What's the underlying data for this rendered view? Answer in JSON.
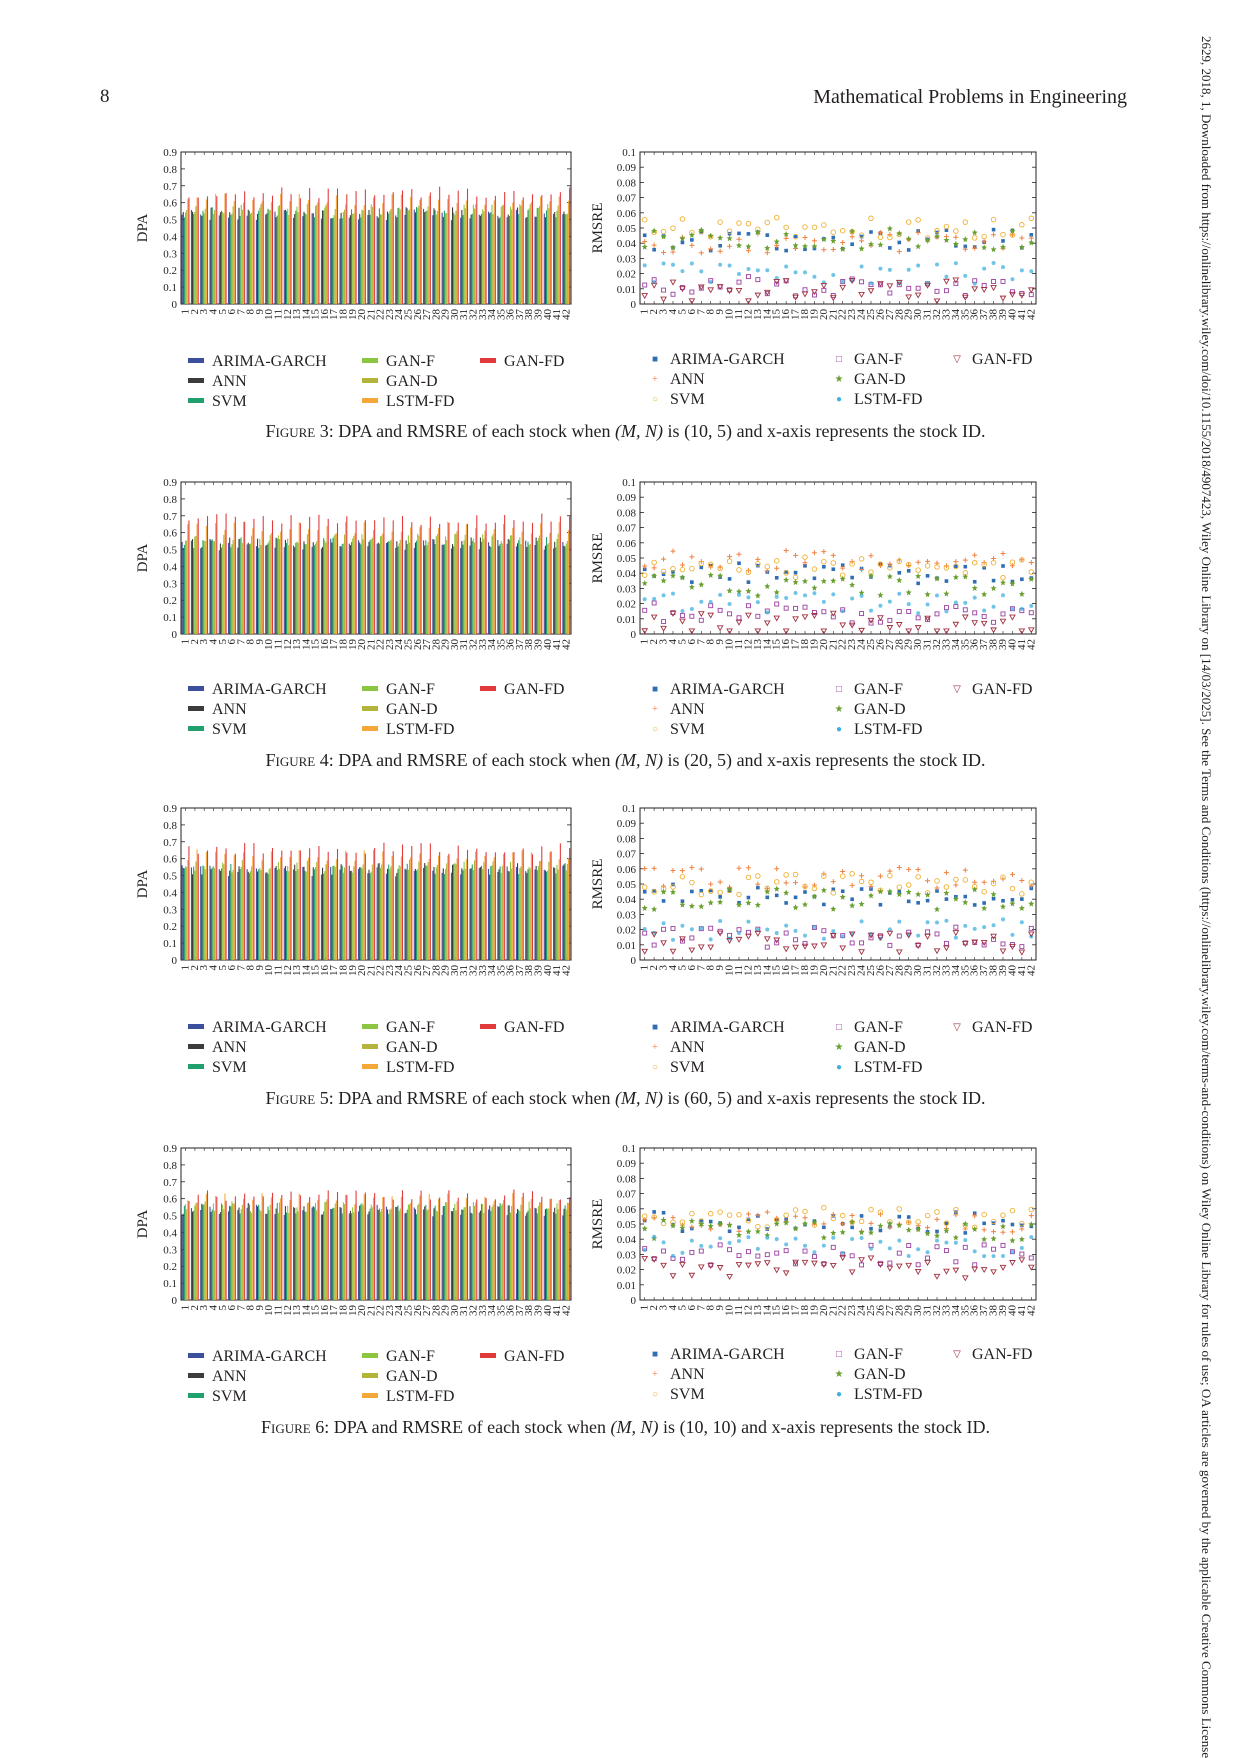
{
  "page_number": "8",
  "journal_header": "Mathematical Problems in Engineering",
  "side_text": "2629, 2018, 1, Downloaded from https://onlinelibrary.wiley.com/doi/10.1155/2018/4907423, Wiley Online Library on [14/03/2025]. See the Terms and Conditions (https://onlinelibrary.wiley.com/terms-and-conditions) on Wiley Online Library for rules of use; OA articles are governed by the applicable Creative Commons License",
  "colors": {
    "ARIMA-GARCH": "#3b4f9c",
    "ANN": "#3c3c3c",
    "SVM": "#22a06b",
    "GAN-F": "#8cc63f",
    "GAN-D": "#b5b43a",
    "LSTM-FD": "#f5a83a",
    "GAN-FD": "#e03a3a",
    "marker_ARIMA-GARCH": "#2f6db5",
    "marker_ANN": "#f08040",
    "marker_SVM": "#f0b030",
    "marker_GAN-F": "#9b3fa0",
    "marker_GAN-D": "#6aa030",
    "marker_LSTM-FD": "#40b0e0",
    "marker_GAN-FD": "#a03040"
  },
  "legend": {
    "bar_items": [
      "ARIMA-GARCH",
      "ANN",
      "SVM",
      "GAN-F",
      "GAN-D",
      "LSTM-FD",
      "GAN-FD"
    ],
    "marker_items": [
      "ARIMA-GARCH",
      "ANN",
      "SVM",
      "GAN-F",
      "GAN-D",
      "LSTM-FD",
      "GAN-FD"
    ]
  },
  "figures": [
    {
      "label": "Figure 3:",
      "caption_rest": " DPA and RMSRE of each stock when ",
      "mn": "(10, 5)",
      "caption_end": " and x-axis represents the stock ID."
    },
    {
      "label": "Figure 4:",
      "caption_rest": " DPA and RMSRE of each stock when ",
      "mn": "(20, 5)",
      "caption_end": " and x-axis represents the stock ID."
    },
    {
      "label": "Figure 5:",
      "caption_rest": " DPA and RMSRE of each stock when ",
      "mn": "(60, 5)",
      "caption_end": " and x-axis represents the stock ID."
    },
    {
      "label": "Figure 6:",
      "caption_rest": " DPA and RMSRE of each stock when ",
      "mn": "(10, 10)",
      "caption_end": " and x-axis represents the stock ID."
    }
  ],
  "chart_data": [
    {
      "figure": "Figure 3",
      "type": "bar",
      "ylabel": "DPA",
      "ylim": [
        0,
        0.9
      ],
      "yticks": [
        "0",
        "0.1",
        "0.2",
        "0.3",
        "0.4",
        "0.5",
        "0.6",
        "0.7",
        "0.8",
        "0.9"
      ],
      "categories": [
        "1",
        "2",
        "3",
        "4",
        "5",
        "6",
        "7",
        "8",
        "9",
        "10",
        "11",
        "12",
        "13",
        "14",
        "15",
        "16",
        "17",
        "18",
        "19",
        "20",
        "21",
        "22",
        "23",
        "24",
        "25",
        "26",
        "27",
        "28",
        "29",
        "30",
        "31",
        "32",
        "33",
        "34",
        "35",
        "36",
        "37",
        "38",
        "39",
        "40",
        "41",
        "42"
      ],
      "series_mean": {
        "ARIMA-GARCH": 0.53,
        "ANN": 0.54,
        "SVM": 0.54,
        "GAN-F": 0.56,
        "GAN-D": 0.56,
        "LSTM-FD": 0.62,
        "GAN-FD": 0.66
      }
    },
    {
      "figure": "Figure 3",
      "type": "scatter",
      "ylabel": "RMSRE",
      "ylim": [
        0,
        0.1
      ],
      "yticks": [
        "0",
        "0.01",
        "0.02",
        "0.03",
        "0.04",
        "0.05",
        "0.06",
        "0.07",
        "0.08",
        "0.09",
        "0.1"
      ],
      "categories": [
        "1",
        "2",
        "3",
        "4",
        "5",
        "6",
        "7",
        "8",
        "9",
        "10",
        "11",
        "12",
        "13",
        "14",
        "15",
        "16",
        "17",
        "18",
        "19",
        "20",
        "21",
        "22",
        "23",
        "24",
        "25",
        "26",
        "27",
        "28",
        "29",
        "30",
        "31",
        "32",
        "33",
        "34",
        "35",
        "36",
        "37",
        "38",
        "39",
        "40",
        "41",
        "42"
      ],
      "series_mean": {
        "ARIMA-GARCH": 0.042,
        "ANN": 0.04,
        "SVM": 0.05,
        "GAN-F": 0.012,
        "GAN-D": 0.043,
        "LSTM-FD": 0.02,
        "GAN-FD": 0.009
      }
    },
    {
      "figure": "Figure 4",
      "type": "bar",
      "ylabel": "DPA",
      "ylim": [
        0,
        0.9
      ],
      "yticks": [
        "0",
        "0.1",
        "0.2",
        "0.3",
        "0.4",
        "0.5",
        "0.6",
        "0.7",
        "0.8",
        "0.9"
      ],
      "categories": [
        "1",
        "2",
        "3",
        "4",
        "5",
        "6",
        "7",
        "8",
        "9",
        "10",
        "11",
        "12",
        "13",
        "14",
        "15",
        "16",
        "17",
        "18",
        "19",
        "20",
        "21",
        "22",
        "23",
        "24",
        "25",
        "26",
        "27",
        "28",
        "29",
        "30",
        "31",
        "32",
        "33",
        "34",
        "35",
        "36",
        "37",
        "38",
        "39",
        "40",
        "41",
        "42"
      ],
      "series_mean": {
        "ARIMA-GARCH": 0.53,
        "ANN": 0.54,
        "SVM": 0.54,
        "GAN-F": 0.56,
        "GAN-D": 0.56,
        "LSTM-FD": 0.63,
        "GAN-FD": 0.68
      }
    },
    {
      "figure": "Figure 4",
      "type": "scatter",
      "ylabel": "RMSRE",
      "ylim": [
        0,
        0.1
      ],
      "yticks": [
        "0",
        "0.01",
        "0.02",
        "0.03",
        "0.04",
        "0.05",
        "0.06",
        "0.07",
        "0.08",
        "0.09",
        "0.1"
      ],
      "categories": [
        "1",
        "2",
        "3",
        "4",
        "5",
        "6",
        "7",
        "8",
        "9",
        "10",
        "11",
        "12",
        "13",
        "14",
        "15",
        "16",
        "17",
        "18",
        "19",
        "20",
        "21",
        "22",
        "23",
        "24",
        "25",
        "26",
        "27",
        "28",
        "29",
        "30",
        "31",
        "32",
        "33",
        "34",
        "35",
        "36",
        "37",
        "38",
        "39",
        "40",
        "41",
        "42"
      ],
      "series_mean": {
        "ARIMA-GARCH": 0.04,
        "ANN": 0.048,
        "SVM": 0.044,
        "GAN-F": 0.014,
        "GAN-D": 0.032,
        "LSTM-FD": 0.02,
        "GAN-FD": 0.007
      }
    },
    {
      "figure": "Figure 5",
      "type": "bar",
      "ylabel": "DPA",
      "ylim": [
        0,
        0.9
      ],
      "yticks": [
        "0",
        "0.1",
        "0.2",
        "0.3",
        "0.4",
        "0.5",
        "0.6",
        "0.7",
        "0.8",
        "0.9"
      ],
      "categories": [
        "1",
        "2",
        "3",
        "4",
        "5",
        "6",
        "7",
        "8",
        "9",
        "10",
        "11",
        "12",
        "13",
        "14",
        "15",
        "16",
        "17",
        "18",
        "19",
        "20",
        "21",
        "22",
        "23",
        "24",
        "25",
        "26",
        "27",
        "28",
        "29",
        "30",
        "31",
        "32",
        "33",
        "34",
        "35",
        "36",
        "37",
        "38",
        "39",
        "40",
        "41",
        "42"
      ],
      "series_mean": {
        "ARIMA-GARCH": 0.53,
        "ANN": 0.54,
        "SVM": 0.54,
        "GAN-F": 0.55,
        "GAN-D": 0.56,
        "LSTM-FD": 0.62,
        "GAN-FD": 0.66
      }
    },
    {
      "figure": "Figure 5",
      "type": "scatter",
      "ylabel": "RMSRE",
      "ylim": [
        0,
        0.1
      ],
      "yticks": [
        "0",
        "0.01",
        "0.02",
        "0.03",
        "0.04",
        "0.05",
        "0.06",
        "0.07",
        "0.08",
        "0.09",
        "0.1"
      ],
      "categories": [
        "1",
        "2",
        "3",
        "4",
        "5",
        "6",
        "7",
        "8",
        "9",
        "10",
        "11",
        "12",
        "13",
        "14",
        "15",
        "16",
        "17",
        "18",
        "19",
        "20",
        "21",
        "22",
        "23",
        "24",
        "25",
        "26",
        "27",
        "28",
        "29",
        "30",
        "31",
        "32",
        "33",
        "34",
        "35",
        "36",
        "37",
        "38",
        "39",
        "40",
        "41",
        "42"
      ],
      "series_mean": {
        "ARIMA-GARCH": 0.043,
        "ANN": 0.054,
        "SVM": 0.05,
        "GAN-F": 0.015,
        "GAN-D": 0.04,
        "LSTM-FD": 0.02,
        "GAN-FD": 0.012
      }
    },
    {
      "figure": "Figure 6",
      "type": "bar",
      "ylabel": "DPA",
      "ylim": [
        0,
        0.9
      ],
      "yticks": [
        "0",
        "0.1",
        "0.2",
        "0.3",
        "0.4",
        "0.5",
        "0.6",
        "0.7",
        "0.8",
        "0.9"
      ],
      "categories": [
        "1",
        "2",
        "3",
        "4",
        "5",
        "6",
        "7",
        "8",
        "9",
        "10",
        "11",
        "12",
        "13",
        "14",
        "15",
        "16",
        "17",
        "18",
        "19",
        "20",
        "21",
        "22",
        "23",
        "24",
        "25",
        "26",
        "27",
        "28",
        "29",
        "30",
        "31",
        "32",
        "33",
        "34",
        "35",
        "36",
        "37",
        "38",
        "39",
        "40",
        "41",
        "42"
      ],
      "series_mean": {
        "ARIMA-GARCH": 0.53,
        "ANN": 0.54,
        "SVM": 0.54,
        "GAN-F": 0.55,
        "GAN-D": 0.55,
        "LSTM-FD": 0.6,
        "GAN-FD": 0.62
      }
    },
    {
      "figure": "Figure 6",
      "type": "scatter",
      "ylabel": "RMSRE",
      "ylim": [
        0,
        0.1
      ],
      "yticks": [
        "0",
        "0.01",
        "0.02",
        "0.03",
        "0.04",
        "0.05",
        "0.06",
        "0.07",
        "0.08",
        "0.09",
        "0.1"
      ],
      "categories": [
        "1",
        "2",
        "3",
        "4",
        "5",
        "6",
        "7",
        "8",
        "9",
        "10",
        "11",
        "12",
        "13",
        "14",
        "15",
        "16",
        "17",
        "18",
        "19",
        "20",
        "21",
        "22",
        "23",
        "24",
        "25",
        "26",
        "27",
        "28",
        "29",
        "30",
        "31",
        "32",
        "33",
        "34",
        "35",
        "36",
        "37",
        "38",
        "39",
        "40",
        "41",
        "42"
      ],
      "series_mean": {
        "ARIMA-GARCH": 0.051,
        "ANN": 0.051,
        "SVM": 0.054,
        "GAN-F": 0.03,
        "GAN-D": 0.046,
        "LSTM-FD": 0.035,
        "GAN-FD": 0.021
      }
    }
  ]
}
